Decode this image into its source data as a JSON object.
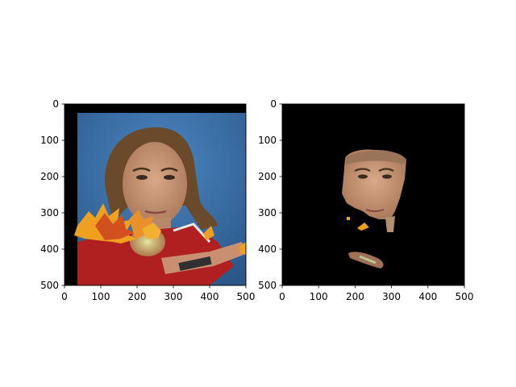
{
  "chart_data": [
    {
      "type": "image",
      "title": "",
      "xlabel": "",
      "ylabel": "",
      "xlim": [
        0,
        500
      ],
      "ylim": [
        500,
        0
      ],
      "x_ticks": [
        0,
        100,
        200,
        300,
        400,
        500
      ],
      "y_ticks": [
        0,
        100,
        200,
        300,
        400,
        500
      ],
      "content": "original photo with autumn leaves overlay",
      "image_extent": {
        "x": [
          35,
          500
        ],
        "y": [
          25,
          500
        ]
      }
    },
    {
      "type": "image",
      "title": "",
      "xlabel": "",
      "ylabel": "",
      "xlim": [
        0,
        500
      ],
      "ylim": [
        500,
        0
      ],
      "x_ticks": [
        0,
        100,
        200,
        300,
        400,
        500
      ],
      "y_ticks": [
        0,
        100,
        200,
        300,
        400,
        500
      ],
      "content": "segmented face on black background"
    }
  ],
  "colors": {
    "background_dark": "#000000",
    "photo_sky": "#3a6fa8",
    "shirt_red": "#b02020",
    "skin": "#c89878",
    "hair": "#6a4a2a",
    "leaf_orange": "#f0a020",
    "leaf_red": "#d05020"
  }
}
